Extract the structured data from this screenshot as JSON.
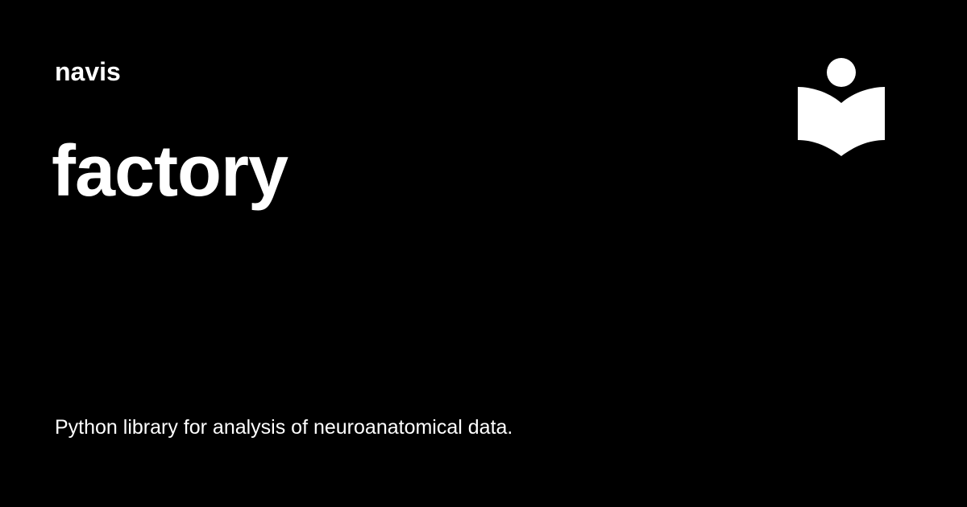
{
  "colors": {
    "background": "#000000",
    "foreground": "#ffffff"
  },
  "header": {
    "site_name": "navis"
  },
  "main": {
    "title": "factory",
    "description": "Python library for analysis of neuroanatomical data."
  },
  "logo": {
    "icon": "reader-book-icon"
  }
}
